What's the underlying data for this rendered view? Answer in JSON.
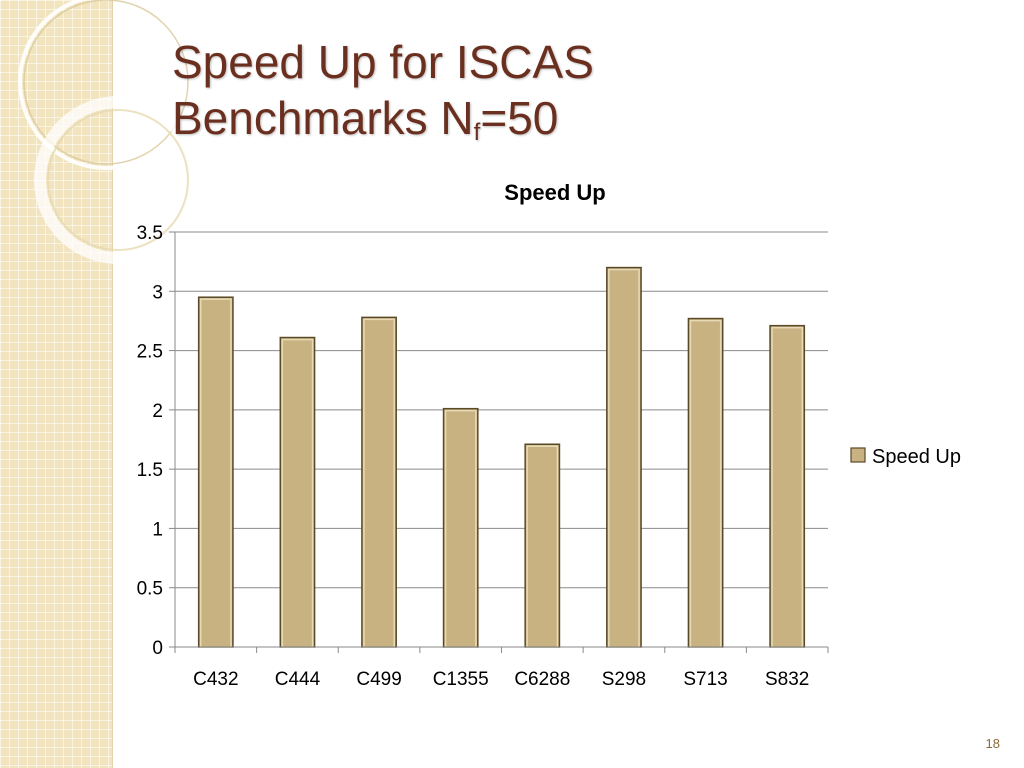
{
  "slide": {
    "title_line1": "Speed Up for ISCAS",
    "title_line2_main": "Benchmarks  N",
    "title_line2_sub": "f",
    "title_line2_tail": "=50",
    "page_number": "18"
  },
  "colors": {
    "bar_fill": "#c9b281",
    "bar_stroke": "#5a4a28",
    "title_color": "#6b2f1f",
    "strip_color": "#f1e4bf"
  },
  "chart_data": {
    "type": "bar",
    "title": "Speed Up",
    "categories": [
      "C432",
      "C444",
      "C499",
      "C1355",
      "C6288",
      "S298",
      "S713",
      "S832"
    ],
    "series": [
      {
        "name": "Speed Up",
        "values": [
          2.95,
          2.61,
          2.78,
          2.01,
          1.71,
          3.2,
          2.77,
          2.71
        ]
      }
    ],
    "ylim": [
      0,
      3.5
    ],
    "yticks": [
      "0",
      "0.5",
      "1",
      "1.5",
      "2",
      "2.5",
      "3",
      "3.5"
    ],
    "xlabel": "",
    "ylabel": "",
    "grid": true,
    "legend_position": "right"
  }
}
